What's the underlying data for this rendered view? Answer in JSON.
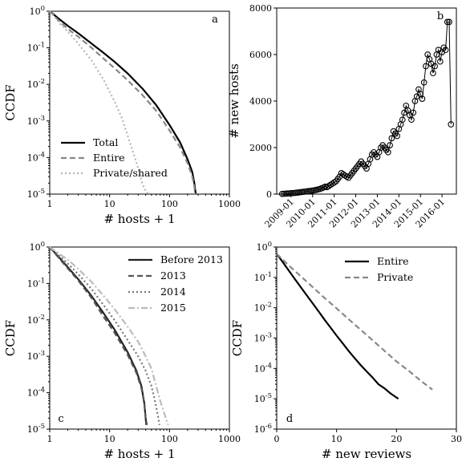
{
  "chart_data": [
    {
      "type": "line",
      "panel_label": "a",
      "xlabel": "# hosts + 1",
      "ylabel": "CCDF",
      "xscale": "log",
      "yscale": "log",
      "xlim": [
        1,
        1000
      ],
      "ylim": [
        1e-05,
        1
      ],
      "xticks": [
        "1",
        "10",
        "100",
        "1000"
      ],
      "yticks": [
        "10^-5",
        "10^-4",
        "10^-3",
        "10^-2",
        "10^-1",
        "10^0"
      ],
      "legend_position": "lower-left",
      "series": [
        {
          "name": "Total",
          "color": "#000000",
          "style": "solid",
          "width": 2.2,
          "x": [
            1,
            1.5,
            2,
            3,
            5,
            8,
            12,
            20,
            35,
            60,
            100,
            150,
            200,
            240,
            260,
            275
          ],
          "y": [
            1,
            0.58,
            0.4,
            0.25,
            0.13,
            0.072,
            0.042,
            0.02,
            0.0078,
            0.0027,
            0.00078,
            0.00026,
            9e-05,
            4e-05,
            2e-05,
            1e-05
          ]
        },
        {
          "name": "Entire",
          "color": "#888888",
          "style": "dashed",
          "width": 2.2,
          "x": [
            1,
            1.5,
            2,
            3,
            5,
            8,
            12,
            20,
            35,
            60,
            100,
            150,
            200,
            240,
            260,
            270
          ],
          "y": [
            1,
            0.5,
            0.33,
            0.2,
            0.1,
            0.05,
            0.028,
            0.013,
            0.0052,
            0.0019,
            0.00055,
            0.00019,
            7e-05,
            3e-05,
            1.6e-05,
            1e-05
          ]
        },
        {
          "name": "Private/shared",
          "color": "#b5b5b5",
          "style": "dotted",
          "width": 2.2,
          "x": [
            1,
            1.5,
            2,
            3,
            5,
            8,
            12,
            16,
            20,
            25,
            30,
            35,
            40,
            45
          ],
          "y": [
            1,
            0.45,
            0.28,
            0.13,
            0.045,
            0.013,
            0.0035,
            0.0012,
            0.0004,
            0.00013,
            5e-05,
            2e-05,
            1.2e-05,
            1e-05
          ]
        }
      ]
    },
    {
      "type": "line",
      "panel_label": "b",
      "xlabel": "",
      "ylabel": "# new hosts",
      "xlim": [
        "2008-05",
        "2016-09"
      ],
      "ylim": [
        0,
        8000
      ],
      "yticks": [
        0,
        2000,
        4000,
        6000,
        8000
      ],
      "xticks": [
        "2009-01",
        "2010-01",
        "2011-01",
        "2012-01",
        "2013-01",
        "2014-01",
        "2015-01",
        "2016-01"
      ],
      "series": [
        {
          "color": "#000000",
          "marker": "open-circle",
          "x": [
            "2008-08",
            "2008-09",
            "2008-10",
            "2008-11",
            "2008-12",
            "2009-01",
            "2009-02",
            "2009-03",
            "2009-04",
            "2009-05",
            "2009-06",
            "2009-07",
            "2009-08",
            "2009-09",
            "2009-10",
            "2009-11",
            "2009-12",
            "2010-01",
            "2010-02",
            "2010-03",
            "2010-04",
            "2010-05",
            "2010-06",
            "2010-07",
            "2010-08",
            "2010-09",
            "2010-10",
            "2010-11",
            "2010-12",
            "2011-01",
            "2011-02",
            "2011-03",
            "2011-04",
            "2011-05",
            "2011-06",
            "2011-07",
            "2011-08",
            "2011-09",
            "2011-10",
            "2011-11",
            "2011-12",
            "2012-01",
            "2012-02",
            "2012-03",
            "2012-04",
            "2012-05",
            "2012-06",
            "2012-07",
            "2012-08",
            "2012-09",
            "2012-10",
            "2012-11",
            "2012-12",
            "2013-01",
            "2013-02",
            "2013-03",
            "2013-04",
            "2013-05",
            "2013-06",
            "2013-07",
            "2013-08",
            "2013-09",
            "2013-10",
            "2013-11",
            "2013-12",
            "2014-01",
            "2014-02",
            "2014-03",
            "2014-04",
            "2014-05",
            "2014-06",
            "2014-07",
            "2014-08",
            "2014-09",
            "2014-10",
            "2014-11",
            "2014-12",
            "2015-01",
            "2015-02",
            "2015-03",
            "2015-04",
            "2015-05",
            "2015-06",
            "2015-07",
            "2015-08",
            "2015-09",
            "2015-10",
            "2015-11",
            "2015-12",
            "2016-01",
            "2016-02",
            "2016-03",
            "2016-04",
            "2016-05",
            "2016-06"
          ],
          "y": [
            10,
            15,
            20,
            25,
            30,
            40,
            45,
            50,
            60,
            70,
            80,
            90,
            100,
            110,
            120,
            130,
            140,
            150,
            165,
            180,
            200,
            220,
            250,
            280,
            320,
            300,
            350,
            400,
            450,
            500,
            550,
            650,
            750,
            900,
            850,
            800,
            750,
            700,
            800,
            900,
            1000,
            1100,
            1200,
            1300,
            1400,
            1300,
            1200,
            1100,
            1300,
            1500,
            1700,
            1800,
            1700,
            1600,
            1800,
            2000,
            2100,
            2000,
            1900,
            1800,
            2100,
            2400,
            2700,
            2600,
            2500,
            2800,
            3000,
            3200,
            3500,
            3800,
            3600,
            3400,
            3200,
            3500,
            4000,
            4200,
            4500,
            4300,
            4100,
            4800,
            5500,
            6000,
            5800,
            5600,
            5200,
            5500,
            6000,
            6200,
            5700,
            6100,
            6300,
            6200,
            7400,
            7400,
            3000
          ]
        }
      ]
    },
    {
      "type": "line",
      "panel_label": "c",
      "xlabel": "# hosts + 1",
      "ylabel": "CCDF",
      "xscale": "log",
      "yscale": "log",
      "xlim": [
        1,
        1000
      ],
      "ylim": [
        1e-05,
        1
      ],
      "xticks": [
        "1",
        "10",
        "100",
        "1000"
      ],
      "yticks": [
        "10^-5",
        "10^-4",
        "10^-3",
        "10^-2",
        "10^-1",
        "10^0"
      ],
      "legend_position": "upper-right",
      "series": [
        {
          "name": "Before 2013",
          "color": "#222222",
          "style": "solid",
          "width": 2.2,
          "x": [
            1,
            1.5,
            2,
            3,
            5,
            8,
            12,
            20,
            28,
            34,
            38,
            40,
            41
          ],
          "y": [
            1,
            0.48,
            0.28,
            0.13,
            0.045,
            0.015,
            0.0055,
            0.0013,
            0.0004,
            0.00015,
            5e-05,
            2e-05,
            1.3e-05
          ]
        },
        {
          "name": "2013",
          "color": "#555555",
          "style": "dashed",
          "width": 2.2,
          "x": [
            1,
            1.5,
            2,
            3,
            5,
            8,
            12,
            20,
            28,
            34,
            38,
            40,
            42
          ],
          "y": [
            1,
            0.45,
            0.26,
            0.12,
            0.04,
            0.012,
            0.0045,
            0.0011,
            0.00035,
            0.00013,
            5e-05,
            2e-05,
            1.3e-05
          ]
        },
        {
          "name": "2014",
          "color": "#777777",
          "style": "dotted",
          "width": 2.2,
          "x": [
            1,
            1.5,
            2,
            3,
            5,
            8,
            12,
            20,
            30,
            40,
            50,
            55,
            60,
            65,
            68
          ],
          "y": [
            1,
            0.55,
            0.35,
            0.18,
            0.07,
            0.025,
            0.01,
            0.0028,
            0.001,
            0.0004,
            0.00015,
            8e-05,
            4e-05,
            2e-05,
            1.3e-05
          ]
        },
        {
          "name": "2015",
          "color": "#bbbbbb",
          "style": "dashdot",
          "width": 2.2,
          "x": [
            1,
            1.5,
            2,
            3,
            5,
            8,
            12,
            20,
            30,
            40,
            50,
            60,
            70,
            80,
            95
          ],
          "y": [
            1,
            0.62,
            0.45,
            0.25,
            0.11,
            0.045,
            0.02,
            0.0065,
            0.0025,
            0.001,
            0.00045,
            0.00015,
            6e-05,
            3e-05,
            1.3e-05
          ]
        }
      ]
    },
    {
      "type": "line",
      "panel_label": "d",
      "xlabel": "# new reviews",
      "ylabel": "CCDF",
      "yscale": "log",
      "xlim": [
        0,
        30
      ],
      "ylim": [
        1e-06,
        1
      ],
      "xticks": [
        "0",
        "10",
        "20",
        "30"
      ],
      "yticks": [
        "10^-6",
        "10^-5",
        "10^-4",
        "10^-3",
        "10^-2",
        "10^-1",
        "10^0"
      ],
      "legend_position": "upper-right",
      "series": [
        {
          "name": "Entire",
          "color": "#000000",
          "style": "solid",
          "width": 2.2,
          "x": [
            0,
            1,
            2,
            3,
            4,
            5,
            6,
            7,
            8,
            9,
            10,
            11,
            12,
            13,
            14,
            15,
            16,
            17,
            18,
            19,
            20,
            20.3
          ],
          "y": [
            0.6,
            0.32,
            0.17,
            0.09,
            0.048,
            0.026,
            0.014,
            0.0075,
            0.004,
            0.0022,
            0.0012,
            0.00068,
            0.00038,
            0.00022,
            0.00013,
            8e-05,
            5e-05,
            3e-05,
            2.2e-05,
            1.5e-05,
            1.1e-05,
            1e-05
          ]
        },
        {
          "name": "Private",
          "color": "#888888",
          "style": "dashed",
          "width": 2.2,
          "x": [
            0,
            2,
            4,
            6,
            8,
            10,
            12,
            14,
            16,
            18,
            20,
            22,
            24,
            26
          ],
          "y": [
            0.6,
            0.25,
            0.11,
            0.048,
            0.021,
            0.0095,
            0.0042,
            0.0019,
            0.00085,
            0.00038,
            0.00017,
            8.5e-05,
            4e-05,
            2e-05
          ]
        }
      ]
    }
  ]
}
